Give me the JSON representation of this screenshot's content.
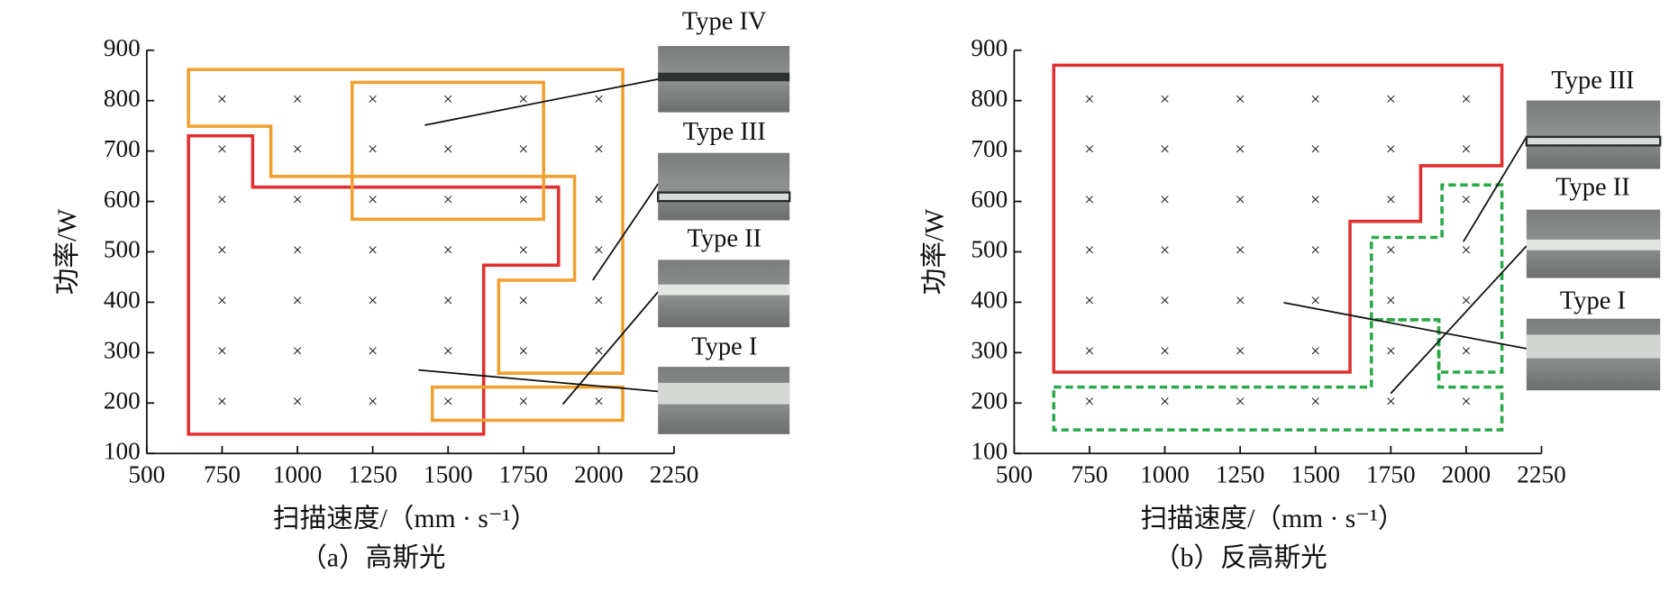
{
  "chart_data": [
    {
      "type": "scatter",
      "caption": "（a）高斯光",
      "xlabel": "扫描速度/（mm · s⁻¹）",
      "ylabel": "功率/W",
      "marker": "×",
      "x": [
        750,
        1000,
        1250,
        1500,
        1750,
        2000,
        750,
        1000,
        1250,
        1500,
        1750,
        2000,
        750,
        1000,
        1250,
        1500,
        1750,
        2000,
        750,
        1000,
        1250,
        1500,
        1750,
        2000,
        750,
        1000,
        1250,
        1500,
        1750,
        2000,
        750,
        1000,
        1250,
        1500,
        1750,
        2000,
        750,
        1000,
        1250,
        1500,
        1750,
        2000
      ],
      "y": [
        800,
        800,
        800,
        800,
        800,
        800,
        700,
        700,
        700,
        700,
        700,
        700,
        600,
        600,
        600,
        600,
        600,
        600,
        500,
        500,
        500,
        500,
        500,
        500,
        400,
        400,
        400,
        400,
        400,
        400,
        300,
        300,
        300,
        300,
        300,
        300,
        200,
        200,
        200,
        200,
        200,
        200
      ],
      "xlim": [
        500,
        2250
      ],
      "xticks": [
        500,
        750,
        1000,
        1250,
        1500,
        1750,
        2000,
        2250
      ],
      "ylim": [
        100,
        900
      ],
      "yticks": [
        100,
        200,
        300,
        400,
        500,
        600,
        700,
        800,
        900
      ],
      "annotations": [
        "Type IV",
        "Type III",
        "Type II",
        "Type I"
      ]
    },
    {
      "type": "scatter",
      "caption": "（b）反高斯光",
      "xlabel": "扫描速度/（mm · s⁻¹）",
      "ylabel": "功率/W",
      "marker": "×",
      "x": [
        750,
        1000,
        1250,
        1500,
        1750,
        2000,
        750,
        1000,
        1250,
        1500,
        1750,
        2000,
        750,
        1000,
        1250,
        1500,
        1750,
        2000,
        750,
        1000,
        1250,
        1500,
        1750,
        2000,
        750,
        1000,
        1250,
        1500,
        1750,
        2000,
        750,
        1000,
        1250,
        1500,
        1750,
        2000,
        750,
        1000,
        1250,
        1500,
        1750,
        2000
      ],
      "y": [
        800,
        800,
        800,
        800,
        800,
        800,
        700,
        700,
        700,
        700,
        700,
        700,
        600,
        600,
        600,
        600,
        600,
        600,
        500,
        500,
        500,
        500,
        500,
        500,
        400,
        400,
        400,
        400,
        400,
        400,
        300,
        300,
        300,
        300,
        300,
        300,
        200,
        200,
        200,
        200,
        200,
        200
      ],
      "xlim": [
        500,
        2250
      ],
      "xticks": [
        500,
        750,
        1000,
        1250,
        1500,
        1750,
        2000,
        2250
      ],
      "ylim": [
        100,
        900
      ],
      "yticks": [
        100,
        200,
        300,
        400,
        500,
        600,
        700,
        800,
        900
      ],
      "annotations": [
        "Type III",
        "Type II",
        "Type I"
      ]
    }
  ]
}
